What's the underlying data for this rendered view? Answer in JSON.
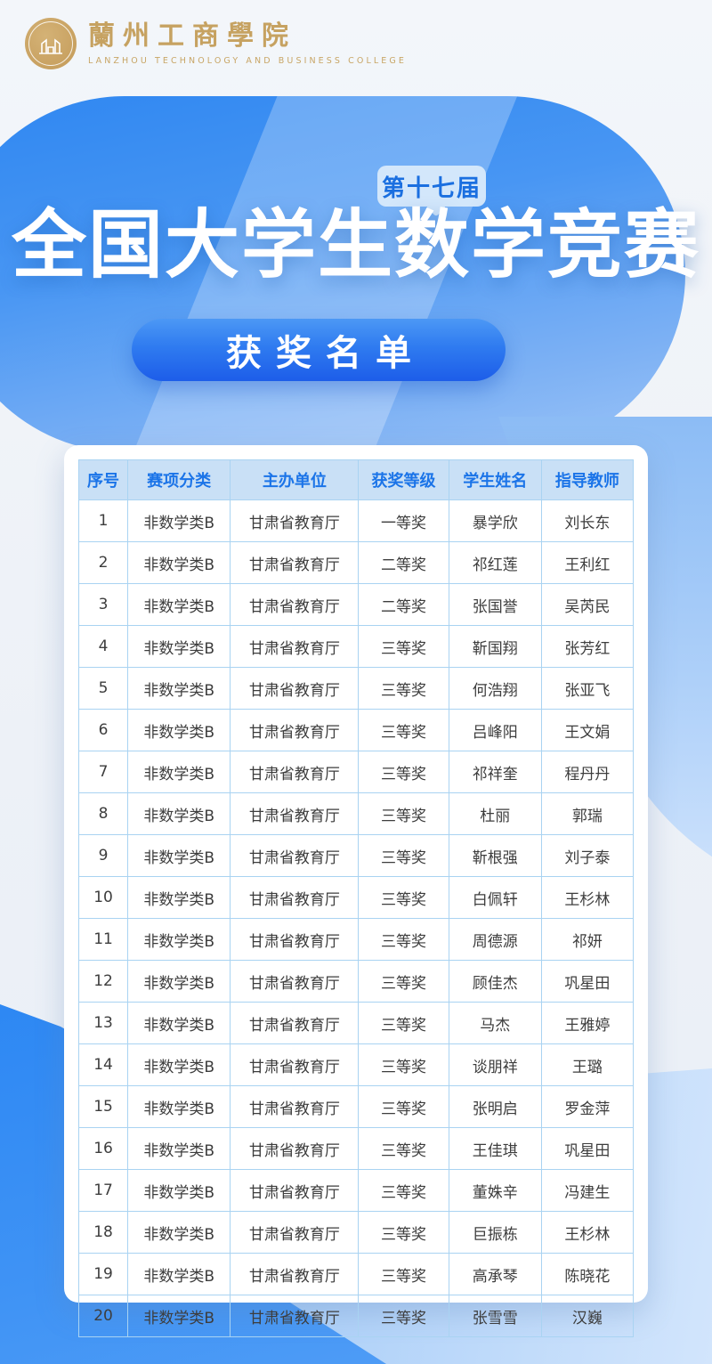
{
  "header": {
    "logo_seal": "lanzhou-college-seal",
    "college_name_zh": "蘭州工商學院",
    "college_name_en": "LANZHOU TECHNOLOGY AND BUSINESS COLLEGE"
  },
  "hero": {
    "edition_badge": "第十七届",
    "title": "全国大学生数学竞赛",
    "list_button": "获奖名单"
  },
  "colors": {
    "brand_gold": "#c6a261",
    "primary_blue": "#2f87f1",
    "header_text": "#1b74e8",
    "header_bg": "#c9e0f6",
    "table_border": "#a9d3f2",
    "badge_bg": "#d3e7fb",
    "badge_text": "#1a6fe0"
  },
  "table": {
    "headers": [
      "序号",
      "赛项分类",
      "主办单位",
      "获奖等级",
      "学生姓名",
      "指导教师"
    ],
    "rows": [
      [
        "1",
        "非数学类B",
        "甘肃省教育厅",
        "一等奖",
        "暴学欣",
        "刘长东"
      ],
      [
        "2",
        "非数学类B",
        "甘肃省教育厅",
        "二等奖",
        "祁红莲",
        "王利红"
      ],
      [
        "3",
        "非数学类B",
        "甘肃省教育厅",
        "二等奖",
        "张国誉",
        "吴芮民"
      ],
      [
        "4",
        "非数学类B",
        "甘肃省教育厅",
        "三等奖",
        "靳国翔",
        "张芳红"
      ],
      [
        "5",
        "非数学类B",
        "甘肃省教育厅",
        "三等奖",
        "何浩翔",
        "张亚飞"
      ],
      [
        "6",
        "非数学类B",
        "甘肃省教育厅",
        "三等奖",
        "吕峰阳",
        "王文娟"
      ],
      [
        "7",
        "非数学类B",
        "甘肃省教育厅",
        "三等奖",
        "祁祥奎",
        "程丹丹"
      ],
      [
        "8",
        "非数学类B",
        "甘肃省教育厅",
        "三等奖",
        "杜丽",
        "郭瑞"
      ],
      [
        "9",
        "非数学类B",
        "甘肃省教育厅",
        "三等奖",
        "靳根强",
        "刘子泰"
      ],
      [
        "10",
        "非数学类B",
        "甘肃省教育厅",
        "三等奖",
        "白佩轩",
        "王杉林"
      ],
      [
        "11",
        "非数学类B",
        "甘肃省教育厅",
        "三等奖",
        "周德源",
        "祁妍"
      ],
      [
        "12",
        "非数学类B",
        "甘肃省教育厅",
        "三等奖",
        "顾佳杰",
        "巩星田"
      ],
      [
        "13",
        "非数学类B",
        "甘肃省教育厅",
        "三等奖",
        "马杰",
        "王雅婷"
      ],
      [
        "14",
        "非数学类B",
        "甘肃省教育厅",
        "三等奖",
        "谈朋祥",
        "王璐"
      ],
      [
        "15",
        "非数学类B",
        "甘肃省教育厅",
        "三等奖",
        "张明启",
        "罗金萍"
      ],
      [
        "16",
        "非数学类B",
        "甘肃省教育厅",
        "三等奖",
        "王佳琪",
        "巩星田"
      ],
      [
        "17",
        "非数学类B",
        "甘肃省教育厅",
        "三等奖",
        "董姝辛",
        "冯建生"
      ],
      [
        "18",
        "非数学类B",
        "甘肃省教育厅",
        "三等奖",
        "巨振栋",
        "王杉林"
      ],
      [
        "19",
        "非数学类B",
        "甘肃省教育厅",
        "三等奖",
        "高承琴",
        "陈晓花"
      ],
      [
        "20",
        "非数学类B",
        "甘肃省教育厅",
        "三等奖",
        "张雪雪",
        "汉巍"
      ]
    ]
  }
}
